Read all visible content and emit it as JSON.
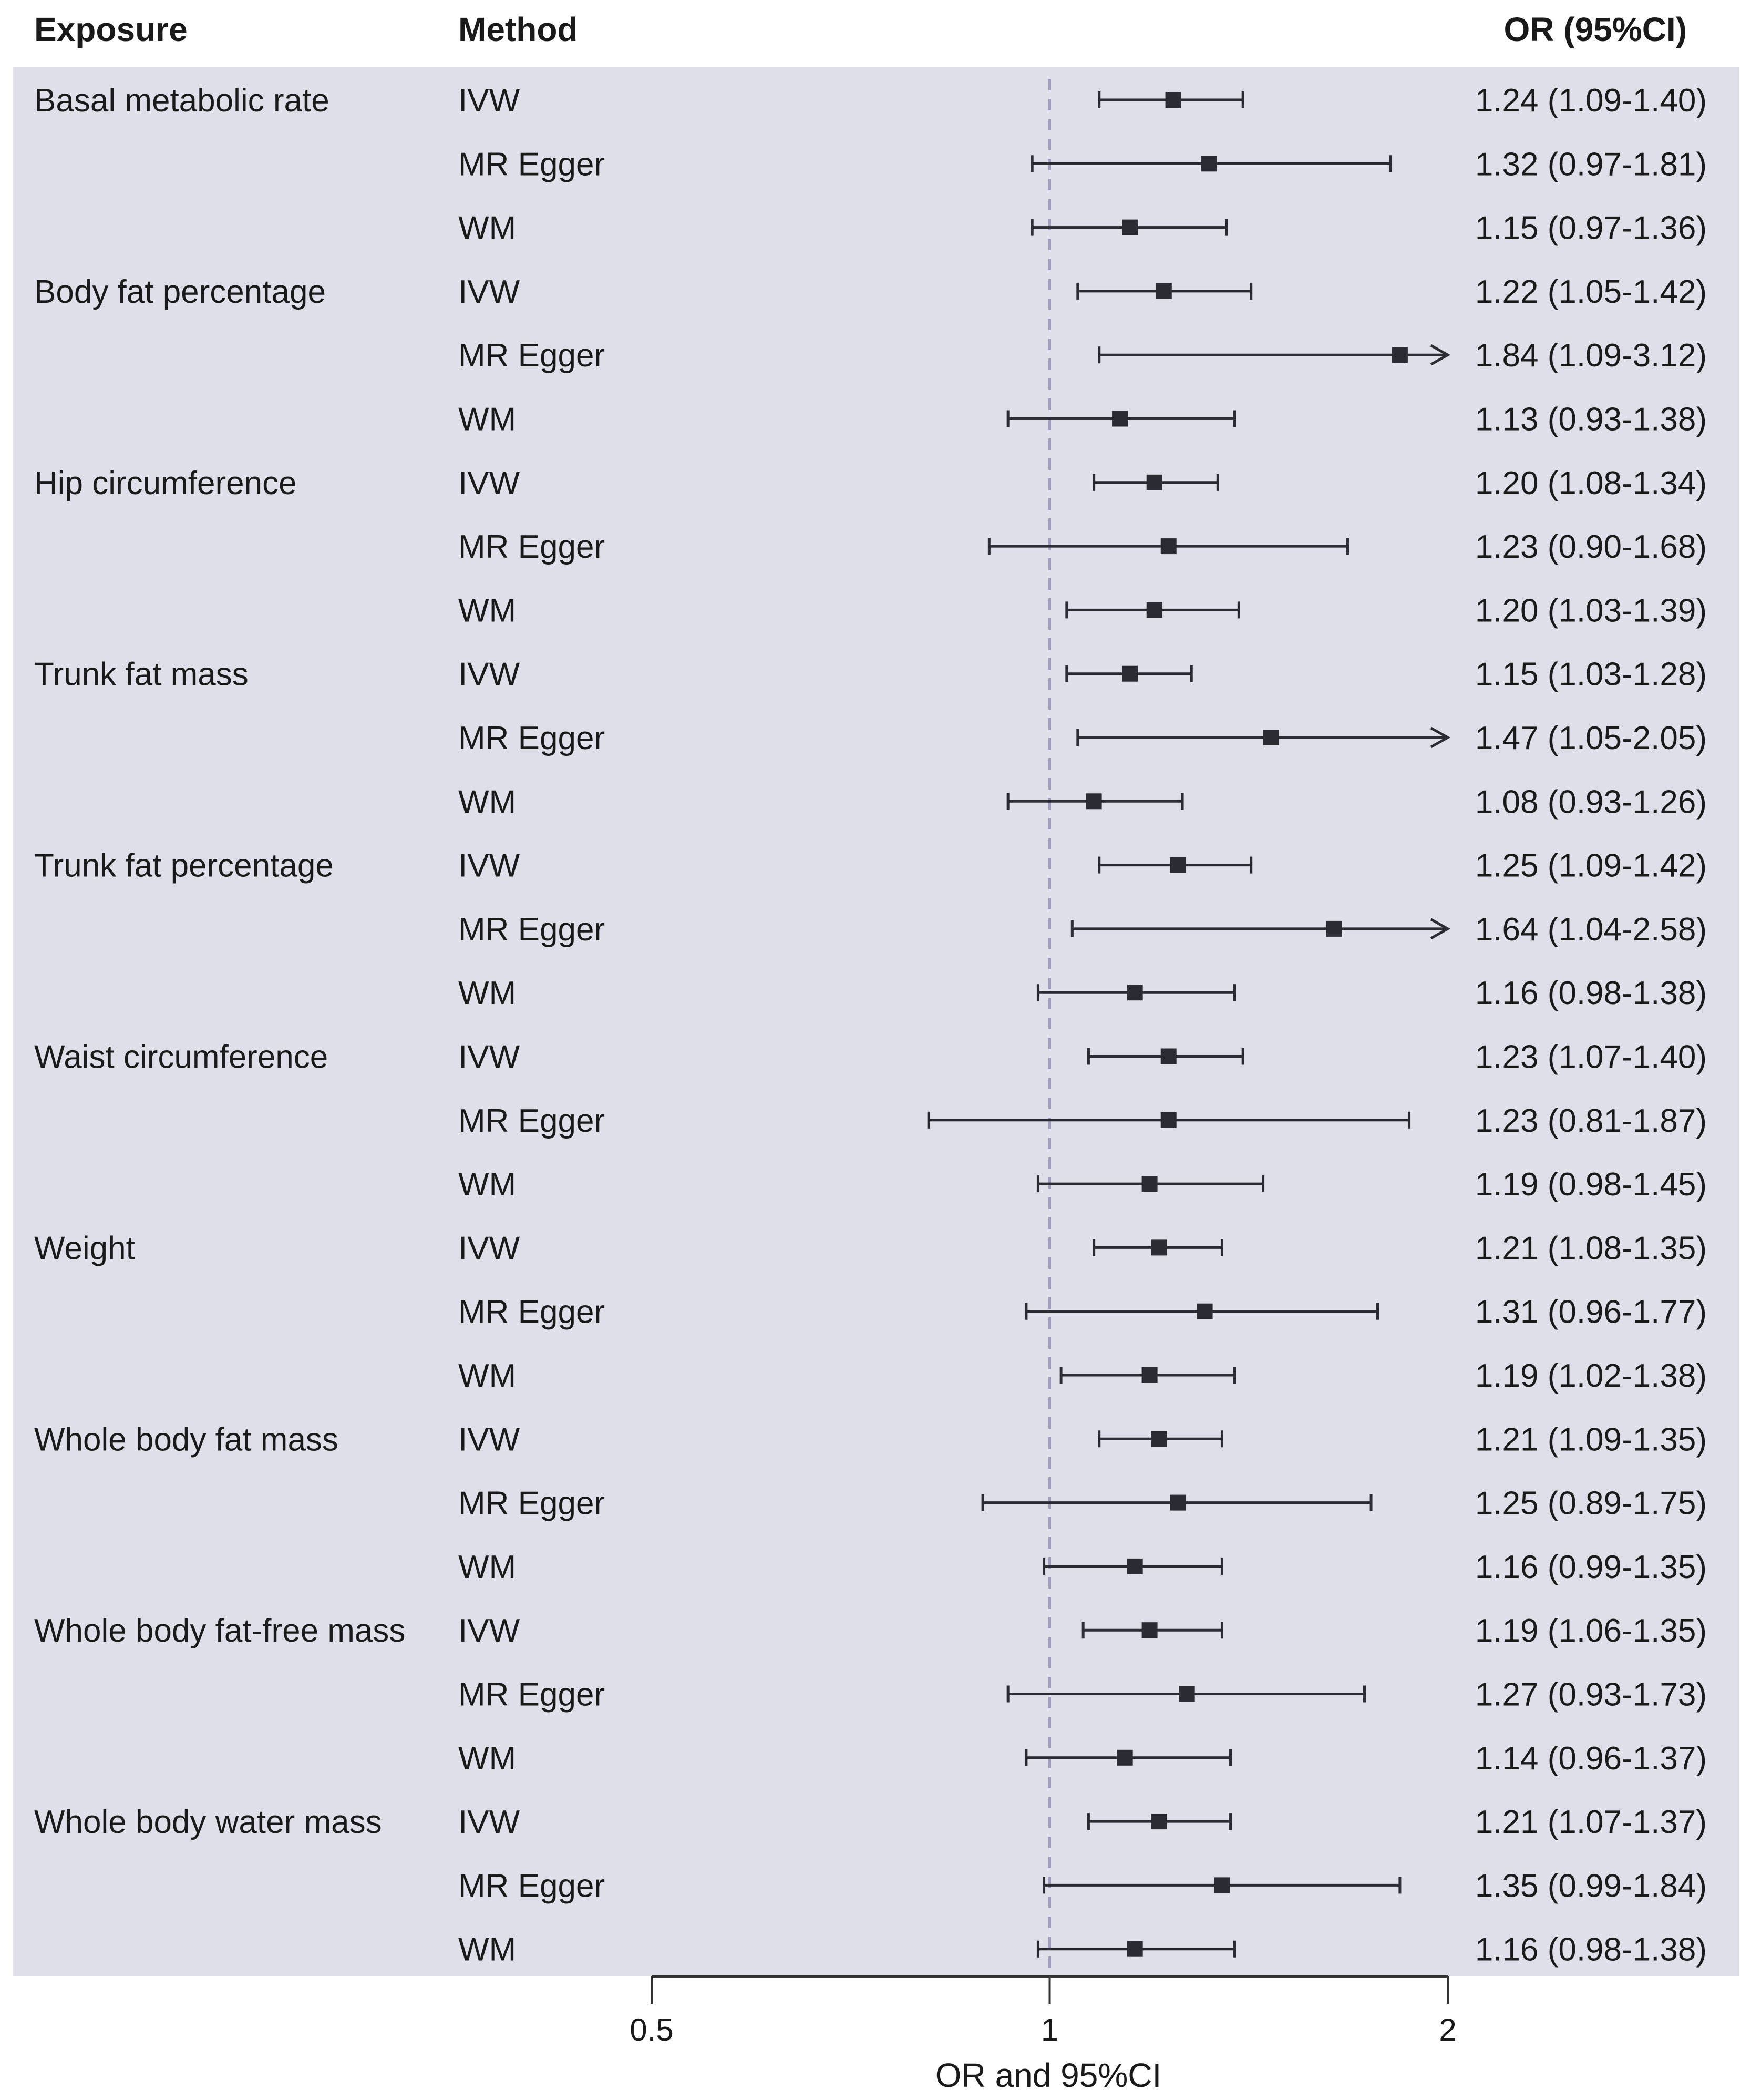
{
  "chart_data": {
    "type": "forest",
    "headers": {
      "exposure": "Exposure",
      "method": "Method",
      "or_ci": "OR (95%CI)"
    },
    "xlabel": "OR and 95%CI",
    "x_scale": "log2",
    "xlim": [
      0.5,
      2
    ],
    "xticks": [
      "0.5",
      "1",
      "2"
    ],
    "reference_line": 1,
    "colors": {
      "panel": "#dfdfe9",
      "marker": "#2b2b33",
      "reference": "#a09cc0"
    },
    "rows": [
      {
        "exposure": "Basal metabolic rate",
        "method": "IVW",
        "or": 1.24,
        "lower": 1.09,
        "upper": 1.4,
        "label": "1.24 (1.09-1.40)"
      },
      {
        "exposure": "",
        "method": "MR Egger",
        "or": 1.32,
        "lower": 0.97,
        "upper": 1.81,
        "label": "1.32 (0.97-1.81)"
      },
      {
        "exposure": "",
        "method": "WM",
        "or": 1.15,
        "lower": 0.97,
        "upper": 1.36,
        "label": "1.15 (0.97-1.36)"
      },
      {
        "exposure": "Body fat percentage",
        "method": "IVW",
        "or": 1.22,
        "lower": 1.05,
        "upper": 1.42,
        "label": "1.22 (1.05-1.42)"
      },
      {
        "exposure": "",
        "method": "MR Egger",
        "or": 1.84,
        "lower": 1.09,
        "upper": 3.12,
        "label": "1.84 (1.09-3.12)"
      },
      {
        "exposure": "",
        "method": "WM",
        "or": 1.13,
        "lower": 0.93,
        "upper": 1.38,
        "label": "1.13 (0.93-1.38)"
      },
      {
        "exposure": "Hip circumference",
        "method": "IVW",
        "or": 1.2,
        "lower": 1.08,
        "upper": 1.34,
        "label": "1.20 (1.08-1.34)"
      },
      {
        "exposure": "",
        "method": "MR Egger",
        "or": 1.23,
        "lower": 0.9,
        "upper": 1.68,
        "label": "1.23 (0.90-1.68)"
      },
      {
        "exposure": "",
        "method": "WM",
        "or": 1.2,
        "lower": 1.03,
        "upper": 1.39,
        "label": "1.20 (1.03-1.39)"
      },
      {
        "exposure": "Trunk fat mass",
        "method": "IVW",
        "or": 1.15,
        "lower": 1.03,
        "upper": 1.28,
        "label": "1.15 (1.03-1.28)"
      },
      {
        "exposure": "",
        "method": "MR Egger",
        "or": 1.47,
        "lower": 1.05,
        "upper": 2.05,
        "label": "1.47 (1.05-2.05)"
      },
      {
        "exposure": "",
        "method": "WM",
        "or": 1.08,
        "lower": 0.93,
        "upper": 1.26,
        "label": "1.08 (0.93-1.26)"
      },
      {
        "exposure": "Trunk fat percentage",
        "method": "IVW",
        "or": 1.25,
        "lower": 1.09,
        "upper": 1.42,
        "label": "1.25 (1.09-1.42)"
      },
      {
        "exposure": "",
        "method": "MR Egger",
        "or": 1.64,
        "lower": 1.04,
        "upper": 2.58,
        "label": "1.64 (1.04-2.58)"
      },
      {
        "exposure": "",
        "method": "WM",
        "or": 1.16,
        "lower": 0.98,
        "upper": 1.38,
        "label": "1.16 (0.98-1.38)"
      },
      {
        "exposure": "Waist circumference",
        "method": "IVW",
        "or": 1.23,
        "lower": 1.07,
        "upper": 1.4,
        "label": "1.23 (1.07-1.40)"
      },
      {
        "exposure": "",
        "method": "MR Egger",
        "or": 1.23,
        "lower": 0.81,
        "upper": 1.87,
        "label": "1.23 (0.81-1.87)"
      },
      {
        "exposure": "",
        "method": "WM",
        "or": 1.19,
        "lower": 0.98,
        "upper": 1.45,
        "label": "1.19 (0.98-1.45)"
      },
      {
        "exposure": "Weight",
        "method": "IVW",
        "or": 1.21,
        "lower": 1.08,
        "upper": 1.35,
        "label": "1.21 (1.08-1.35)"
      },
      {
        "exposure": "",
        "method": "MR Egger",
        "or": 1.31,
        "lower": 0.96,
        "upper": 1.77,
        "label": "1.31 (0.96-1.77)"
      },
      {
        "exposure": "",
        "method": "WM",
        "or": 1.19,
        "lower": 1.02,
        "upper": 1.38,
        "label": "1.19 (1.02-1.38)"
      },
      {
        "exposure": "Whole body fat mass",
        "method": "IVW",
        "or": 1.21,
        "lower": 1.09,
        "upper": 1.35,
        "label": "1.21 (1.09-1.35)"
      },
      {
        "exposure": "",
        "method": "MR Egger",
        "or": 1.25,
        "lower": 0.89,
        "upper": 1.75,
        "label": "1.25 (0.89-1.75)"
      },
      {
        "exposure": "",
        "method": "WM",
        "or": 1.16,
        "lower": 0.99,
        "upper": 1.35,
        "label": "1.16 (0.99-1.35)"
      },
      {
        "exposure": "Whole body fat-free mass",
        "method": "IVW",
        "or": 1.19,
        "lower": 1.06,
        "upper": 1.35,
        "label": "1.19 (1.06-1.35)"
      },
      {
        "exposure": "",
        "method": "MR Egger",
        "or": 1.27,
        "lower": 0.93,
        "upper": 1.73,
        "label": "1.27 (0.93-1.73)"
      },
      {
        "exposure": "",
        "method": "WM",
        "or": 1.14,
        "lower": 0.96,
        "upper": 1.37,
        "label": "1.14 (0.96-1.37)"
      },
      {
        "exposure": "Whole body water mass",
        "method": "IVW",
        "or": 1.21,
        "lower": 1.07,
        "upper": 1.37,
        "label": "1.21 (1.07-1.37)"
      },
      {
        "exposure": "",
        "method": "MR Egger",
        "or": 1.35,
        "lower": 0.99,
        "upper": 1.84,
        "label": "1.35 (0.99-1.84)"
      },
      {
        "exposure": "",
        "method": "WM",
        "or": 1.16,
        "lower": 0.98,
        "upper": 1.38,
        "label": "1.16 (0.98-1.38)"
      }
    ]
  }
}
